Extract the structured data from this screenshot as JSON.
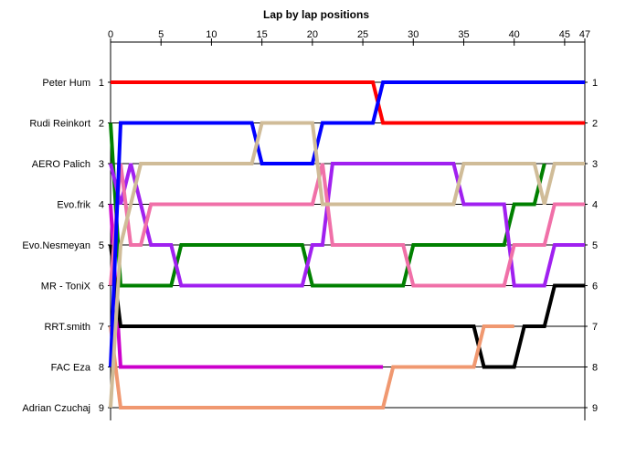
{
  "chart_data": {
    "type": "line",
    "title": "Lap by lap positions",
    "xlabel": "",
    "ylabel": "",
    "xlim": [
      0,
      47
    ],
    "ylim": [
      1,
      9
    ],
    "x_ticks": [
      "0",
      "5",
      "10",
      "15",
      "20",
      "25",
      "30",
      "35",
      "40",
      "45",
      "47"
    ],
    "x_tick_values": [
      0,
      5,
      10,
      15,
      20,
      25,
      30,
      35,
      40,
      45,
      47
    ],
    "y_left_labels": [
      "Peter Hum",
      "Rudi Reinkort",
      "AERO  Palich",
      "Evo.frik",
      "Evo.Nesmeyan",
      "MR - ToniX",
      "RRT.smith",
      "FAC Eza",
      "Adrian Czuchaj"
    ],
    "y_numbers": [
      "1",
      "2",
      "3",
      "4",
      "5",
      "6",
      "7",
      "8",
      "9"
    ],
    "grid": true,
    "legend": "none",
    "series": [
      {
        "name": "Peter Hum",
        "color": "#ff0000",
        "values": [
          1,
          1,
          1,
          1,
          1,
          1,
          1,
          1,
          1,
          1,
          1,
          1,
          1,
          1,
          1,
          1,
          1,
          1,
          1,
          1,
          1,
          1,
          1,
          1,
          1,
          1,
          1,
          2,
          2,
          2,
          2,
          2,
          2,
          2,
          2,
          2,
          2,
          2,
          2,
          2,
          2,
          2,
          2,
          2,
          2,
          2,
          2,
          2
        ]
      },
      {
        "name": "Rudi Reinkort",
        "color": "#008000",
        "values": [
          2,
          6,
          6,
          6,
          6,
          6,
          6,
          5,
          5,
          5,
          5,
          5,
          5,
          5,
          5,
          5,
          5,
          5,
          5,
          5,
          6,
          6,
          6,
          6,
          6,
          6,
          6,
          6,
          6,
          6,
          5,
          5,
          5,
          5,
          5,
          5,
          5,
          5,
          5,
          5,
          4,
          4,
          4,
          3,
          null,
          null,
          null,
          null
        ]
      },
      {
        "name": "AERO  Palich",
        "color": "#a020f0",
        "values": [
          3,
          4,
          3,
          4,
          5,
          5,
          5,
          6,
          6,
          6,
          6,
          6,
          6,
          6,
          6,
          6,
          6,
          6,
          6,
          6,
          5,
          5,
          3,
          3,
          3,
          3,
          3,
          3,
          3,
          3,
          3,
          3,
          3,
          3,
          3,
          4,
          4,
          4,
          4,
          4,
          6,
          6,
          6,
          6,
          5,
          5,
          5,
          5
        ]
      },
      {
        "name": "Evo.frik",
        "color": "#cc00cc",
        "values": [
          4,
          8,
          8,
          8,
          8,
          8,
          8,
          8,
          8,
          8,
          8,
          8,
          8,
          8,
          8,
          8,
          8,
          8,
          8,
          8,
          8,
          8,
          8,
          8,
          8,
          8,
          8,
          8,
          null,
          null,
          null,
          null,
          null,
          null,
          null,
          null,
          null,
          null,
          null,
          null,
          null,
          null,
          null,
          null,
          null,
          null,
          null,
          null
        ]
      },
      {
        "name": "Evo.Nesmeyan",
        "color": "#000000",
        "values": [
          5,
          7,
          7,
          7,
          7,
          7,
          7,
          7,
          7,
          7,
          7,
          7,
          7,
          7,
          7,
          7,
          7,
          7,
          7,
          7,
          7,
          7,
          7,
          7,
          7,
          7,
          7,
          7,
          7,
          7,
          7,
          7,
          7,
          7,
          7,
          7,
          7,
          8,
          8,
          8,
          8,
          7,
          7,
          7,
          6,
          6,
          6,
          6
        ]
      },
      {
        "name": "MR - ToniX",
        "color": "#f070a8",
        "values": [
          6,
          3,
          5,
          5,
          4,
          4,
          4,
          4,
          4,
          4,
          4,
          4,
          4,
          4,
          4,
          4,
          4,
          4,
          4,
          4,
          4,
          3,
          5,
          5,
          5,
          5,
          5,
          5,
          5,
          5,
          6,
          6,
          6,
          6,
          6,
          6,
          6,
          6,
          6,
          6,
          5,
          5,
          5,
          5,
          4,
          4,
          4,
          4
        ]
      },
      {
        "name": "RRT.smith",
        "color": "#f09870",
        "values": [
          7,
          9,
          9,
          9,
          9,
          9,
          9,
          9,
          9,
          9,
          9,
          9,
          9,
          9,
          9,
          9,
          9,
          9,
          9,
          9,
          9,
          9,
          9,
          9,
          9,
          9,
          9,
          9,
          8,
          8,
          8,
          8,
          8,
          8,
          8,
          8,
          8,
          7,
          7,
          7,
          7,
          null,
          null,
          null,
          null,
          null,
          null,
          null
        ]
      },
      {
        "name": "FAC Eza",
        "color": "#0000ff",
        "values": [
          8,
          2,
          2,
          2,
          2,
          2,
          2,
          2,
          2,
          2,
          2,
          2,
          2,
          2,
          2,
          3,
          3,
          3,
          3,
          3,
          3,
          2,
          2,
          2,
          2,
          2,
          2,
          1,
          1,
          1,
          1,
          1,
          1,
          1,
          1,
          1,
          1,
          1,
          1,
          1,
          1,
          1,
          1,
          1,
          1,
          1,
          1,
          1
        ]
      },
      {
        "name": "Adrian Czuchaj",
        "color": "#d0bc98",
        "values": [
          9,
          5,
          4,
          3,
          3,
          3,
          3,
          3,
          3,
          3,
          3,
          3,
          3,
          3,
          3,
          2,
          2,
          2,
          2,
          2,
          2,
          4,
          4,
          4,
          4,
          4,
          4,
          4,
          4,
          4,
          4,
          4,
          4,
          4,
          4,
          3,
          3,
          3,
          3,
          3,
          3,
          3,
          3,
          4,
          3,
          3,
          3,
          3
        ]
      }
    ]
  }
}
